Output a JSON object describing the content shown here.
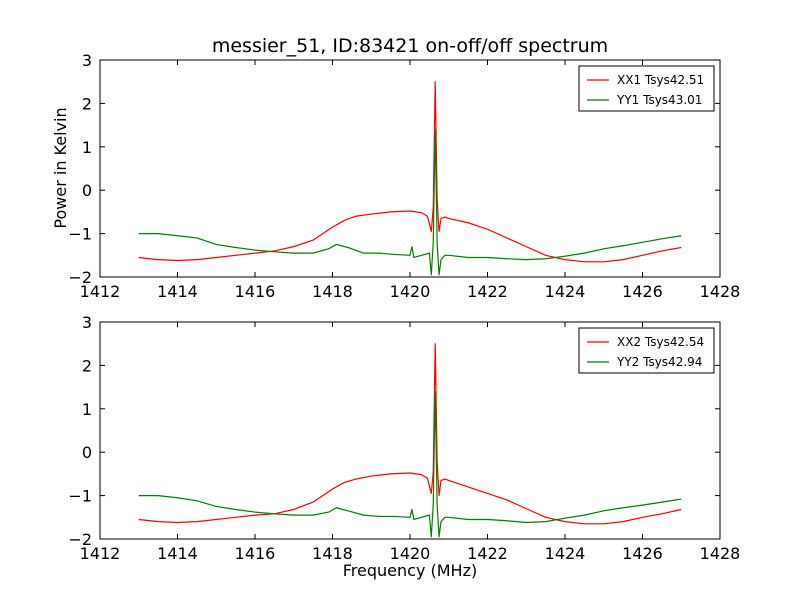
{
  "chart_data": [
    {
      "type": "line",
      "title": "messier_51, ID:83421 on-off/off spectrum",
      "xlabel": "",
      "ylabel": "Power in Kelvin",
      "xlim": [
        1412,
        1428
      ],
      "ylim": [
        -2,
        3
      ],
      "xticks": [
        1412,
        1414,
        1416,
        1418,
        1420,
        1422,
        1424,
        1426,
        1428
      ],
      "yticks": [
        -2,
        -1,
        0,
        1,
        2,
        3
      ],
      "grid": false,
      "legend": "top-right",
      "series": [
        {
          "name": "XX1 Tsys42.51",
          "color": "#ff0000",
          "x": [
            1413.0,
            1413.5,
            1414.0,
            1414.5,
            1415.0,
            1415.5,
            1416.0,
            1416.5,
            1417.0,
            1417.5,
            1418.0,
            1418.3,
            1418.6,
            1419.0,
            1419.5,
            1420.0,
            1420.3,
            1420.45,
            1420.55,
            1420.6,
            1420.65,
            1420.7,
            1420.75,
            1420.8,
            1420.9,
            1421.0,
            1421.5,
            1422.0,
            1422.5,
            1423.0,
            1423.5,
            1424.0,
            1424.5,
            1425.0,
            1425.5,
            1426.0,
            1426.5,
            1427.0
          ],
          "y": [
            -1.55,
            -1.6,
            -1.62,
            -1.6,
            -1.55,
            -1.5,
            -1.45,
            -1.4,
            -1.3,
            -1.15,
            -0.85,
            -0.7,
            -0.6,
            -0.55,
            -0.5,
            -0.48,
            -0.52,
            -0.6,
            -0.95,
            -0.4,
            2.5,
            -0.2,
            -0.95,
            -0.65,
            -0.62,
            -0.65,
            -0.75,
            -0.9,
            -1.1,
            -1.3,
            -1.5,
            -1.6,
            -1.65,
            -1.65,
            -1.6,
            -1.5,
            -1.4,
            -1.32
          ]
        },
        {
          "name": "YY1 Tsys43.01",
          "color": "#008000",
          "x": [
            1413.0,
            1413.5,
            1414.0,
            1414.5,
            1415.0,
            1415.5,
            1416.0,
            1416.5,
            1417.0,
            1417.5,
            1417.9,
            1418.1,
            1418.4,
            1418.8,
            1419.2,
            1419.6,
            1420.0,
            1420.05,
            1420.1,
            1420.3,
            1420.5,
            1420.55,
            1420.6,
            1420.65,
            1420.7,
            1420.75,
            1420.8,
            1420.9,
            1421.0,
            1421.5,
            1422.0,
            1422.5,
            1423.0,
            1423.5,
            1424.0,
            1424.5,
            1425.0,
            1425.5,
            1426.0,
            1426.5,
            1427.0
          ],
          "y": [
            -1.0,
            -1.0,
            -1.05,
            -1.1,
            -1.25,
            -1.32,
            -1.38,
            -1.42,
            -1.45,
            -1.45,
            -1.35,
            -1.25,
            -1.32,
            -1.45,
            -1.45,
            -1.48,
            -1.5,
            -1.3,
            -1.55,
            -1.5,
            -1.45,
            -1.95,
            -1.2,
            1.4,
            -1.2,
            -1.95,
            -1.6,
            -1.5,
            -1.5,
            -1.55,
            -1.55,
            -1.58,
            -1.6,
            -1.58,
            -1.52,
            -1.45,
            -1.35,
            -1.28,
            -1.2,
            -1.12,
            -1.05
          ]
        }
      ]
    },
    {
      "type": "line",
      "title": "",
      "xlabel": "Frequency (MHz)",
      "ylabel": "",
      "xlim": [
        1412,
        1428
      ],
      "ylim": [
        -2,
        3
      ],
      "xticks": [
        1412,
        1414,
        1416,
        1418,
        1420,
        1422,
        1424,
        1426,
        1428
      ],
      "yticks": [
        -2,
        -1,
        0,
        1,
        2,
        3
      ],
      "grid": false,
      "legend": "top-right",
      "series": [
        {
          "name": "XX2 Tsys42.54",
          "color": "#ff0000",
          "x": [
            1413.0,
            1413.5,
            1414.0,
            1414.5,
            1415.0,
            1415.5,
            1416.0,
            1416.5,
            1417.0,
            1417.5,
            1418.0,
            1418.3,
            1418.6,
            1419.0,
            1419.5,
            1420.0,
            1420.3,
            1420.45,
            1420.55,
            1420.6,
            1420.65,
            1420.7,
            1420.75,
            1420.8,
            1420.9,
            1421.0,
            1421.5,
            1422.0,
            1422.5,
            1423.0,
            1423.5,
            1424.0,
            1424.5,
            1425.0,
            1425.5,
            1426.0,
            1426.5,
            1427.0
          ],
          "y": [
            -1.55,
            -1.6,
            -1.62,
            -1.6,
            -1.55,
            -1.5,
            -1.45,
            -1.42,
            -1.32,
            -1.15,
            -0.85,
            -0.7,
            -0.62,
            -0.55,
            -0.5,
            -0.48,
            -0.52,
            -0.6,
            -0.95,
            -0.45,
            2.5,
            -0.2,
            -1.0,
            -0.65,
            -0.62,
            -0.65,
            -0.8,
            -0.95,
            -1.1,
            -1.3,
            -1.5,
            -1.6,
            -1.65,
            -1.65,
            -1.6,
            -1.5,
            -1.42,
            -1.32
          ]
        },
        {
          "name": "YY2 Tsys42.94",
          "color": "#008000",
          "x": [
            1413.0,
            1413.5,
            1414.0,
            1414.5,
            1415.0,
            1415.5,
            1416.0,
            1416.5,
            1417.0,
            1417.5,
            1417.9,
            1418.1,
            1418.4,
            1418.8,
            1419.2,
            1419.6,
            1420.0,
            1420.05,
            1420.1,
            1420.3,
            1420.5,
            1420.55,
            1420.6,
            1420.65,
            1420.7,
            1420.75,
            1420.8,
            1420.9,
            1421.0,
            1421.5,
            1422.0,
            1422.5,
            1423.0,
            1423.5,
            1424.0,
            1424.5,
            1425.0,
            1425.5,
            1426.0,
            1426.5,
            1427.0
          ],
          "y": [
            -1.0,
            -1.0,
            -1.05,
            -1.12,
            -1.25,
            -1.32,
            -1.38,
            -1.42,
            -1.45,
            -1.45,
            -1.38,
            -1.28,
            -1.35,
            -1.45,
            -1.48,
            -1.48,
            -1.5,
            -1.32,
            -1.55,
            -1.5,
            -1.45,
            -1.95,
            -1.2,
            1.4,
            -1.2,
            -1.95,
            -1.6,
            -1.5,
            -1.5,
            -1.55,
            -1.55,
            -1.58,
            -1.62,
            -1.6,
            -1.52,
            -1.45,
            -1.35,
            -1.28,
            -1.22,
            -1.15,
            -1.08
          ]
        }
      ]
    }
  ]
}
